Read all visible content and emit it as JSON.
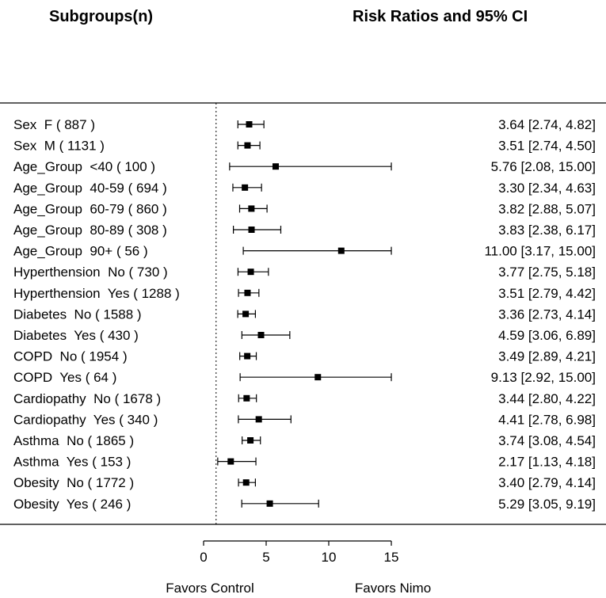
{
  "chart_data": {
    "type": "forest",
    "headers": {
      "left": "Subgroups(n)",
      "right": "Risk Ratios and 95% CI"
    },
    "xlim": [
      0,
      15
    ],
    "ticks": [
      0,
      5,
      10,
      15
    ],
    "reference_line": 1,
    "favors_left": "Favors Control",
    "favors_right": "Favors Nimo",
    "rows": [
      {
        "label": "Sex  F ( 887 )",
        "rr": 3.64,
        "lo": 2.74,
        "hi": 4.82,
        "text": "3.64 [2.74,  4.82]"
      },
      {
        "label": "Sex  M ( 1131 )",
        "rr": 3.51,
        "lo": 2.74,
        "hi": 4.5,
        "text": "3.51 [2.74,  4.50]"
      },
      {
        "label": "Age_Group  <40 ( 100 )",
        "rr": 5.76,
        "lo": 2.08,
        "hi": 15.0,
        "text": "5.76 [2.08, 15.00]"
      },
      {
        "label": "Age_Group  40-59 ( 694 )",
        "rr": 3.3,
        "lo": 2.34,
        "hi": 4.63,
        "text": "3.30 [2.34,  4.63]"
      },
      {
        "label": "Age_Group  60-79 ( 860 )",
        "rr": 3.82,
        "lo": 2.88,
        "hi": 5.07,
        "text": "3.82 [2.88,  5.07]"
      },
      {
        "label": "Age_Group  80-89 ( 308 )",
        "rr": 3.83,
        "lo": 2.38,
        "hi": 6.17,
        "text": "3.83 [2.38,  6.17]"
      },
      {
        "label": "Age_Group  90+ ( 56 )",
        "rr": 11.0,
        "lo": 3.17,
        "hi": 15.0,
        "text": "11.00 [3.17, 15.00]"
      },
      {
        "label": "Hyperthension  No ( 730 )",
        "rr": 3.77,
        "lo": 2.75,
        "hi": 5.18,
        "text": "3.77 [2.75,  5.18]"
      },
      {
        "label": "Hyperthension  Yes ( 1288 )",
        "rr": 3.51,
        "lo": 2.79,
        "hi": 4.42,
        "text": "3.51 [2.79,  4.42]"
      },
      {
        "label": "Diabetes  No ( 1588 )",
        "rr": 3.36,
        "lo": 2.73,
        "hi": 4.14,
        "text": "3.36 [2.73,  4.14]"
      },
      {
        "label": "Diabetes  Yes ( 430 )",
        "rr": 4.59,
        "lo": 3.06,
        "hi": 6.89,
        "text": "4.59 [3.06,  6.89]"
      },
      {
        "label": "COPD  No ( 1954 )",
        "rr": 3.49,
        "lo": 2.89,
        "hi": 4.21,
        "text": "3.49 [2.89,  4.21]"
      },
      {
        "label": "COPD  Yes ( 64 )",
        "rr": 9.13,
        "lo": 2.92,
        "hi": 15.0,
        "text": "9.13 [2.92, 15.00]"
      },
      {
        "label": "Cardiopathy  No ( 1678 )",
        "rr": 3.44,
        "lo": 2.8,
        "hi": 4.22,
        "text": "3.44 [2.80,  4.22]"
      },
      {
        "label": "Cardiopathy  Yes ( 340 )",
        "rr": 4.41,
        "lo": 2.78,
        "hi": 6.98,
        "text": "4.41 [2.78,  6.98]"
      },
      {
        "label": "Asthma  No ( 1865 )",
        "rr": 3.74,
        "lo": 3.08,
        "hi": 4.54,
        "text": "3.74 [3.08,  4.54]"
      },
      {
        "label": "Asthma  Yes ( 153 )",
        "rr": 2.17,
        "lo": 1.13,
        "hi": 4.18,
        "text": "2.17 [1.13,  4.18]"
      },
      {
        "label": "Obesity  No ( 1772 )",
        "rr": 3.4,
        "lo": 2.79,
        "hi": 4.14,
        "text": "3.40 [2.79,  4.14]"
      },
      {
        "label": "Obesity  Yes ( 246 )",
        "rr": 5.29,
        "lo": 3.05,
        "hi": 9.19,
        "text": "5.29 [3.05,  9.19]"
      }
    ]
  }
}
